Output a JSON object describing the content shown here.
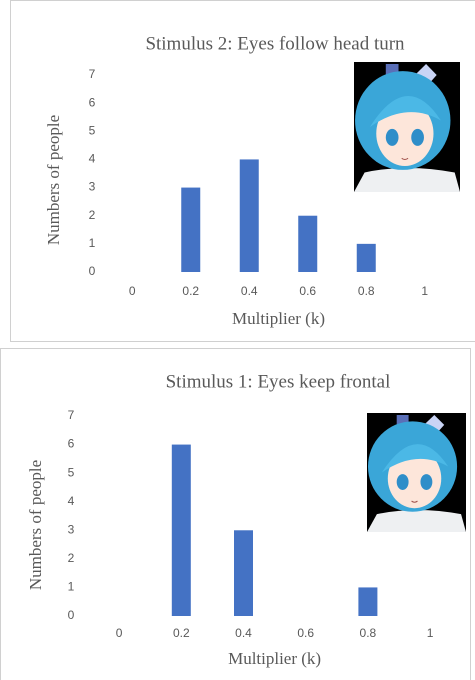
{
  "chart_data": [
    {
      "type": "bar",
      "title": "Stimulus 2: Eyes follow head turn",
      "x_label": "Multiplier (k)",
      "y_label": "Numbers of people",
      "categories": [
        "0",
        "0.2",
        "0.4",
        "0.6",
        "0.8",
        "1"
      ],
      "values": [
        0,
        3,
        4,
        2,
        1,
        0
      ],
      "color": "#4472c4",
      "ylim": [
        0,
        7
      ],
      "yticks": [
        0,
        1,
        2,
        3,
        4,
        5,
        6,
        7
      ]
    },
    {
      "type": "bar",
      "title": "Stimulus 1: Eyes keep frontal",
      "x_label": "Multiplier (k)",
      "y_label": "Numbers of people",
      "categories": [
        "0",
        "0.2",
        "0.4",
        "0.6",
        "0.8",
        "1"
      ],
      "values": [
        0,
        6,
        3,
        0,
        1,
        0
      ],
      "color": "#4472c4",
      "ylim": [
        0,
        7
      ],
      "yticks": [
        0,
        1,
        2,
        3,
        4,
        5,
        6,
        7
      ]
    }
  ]
}
